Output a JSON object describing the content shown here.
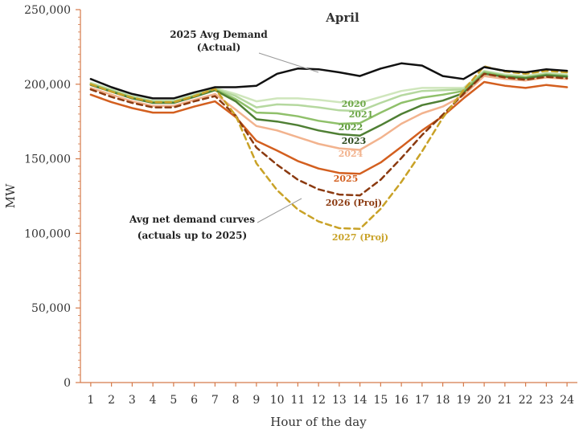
{
  "chart_data": {
    "type": "line",
    "title": "April",
    "xlabel": "Hour of the day",
    "ylabel": "MW",
    "ylim": [
      0,
      250000
    ],
    "xlim": [
      0.5,
      24.5
    ],
    "yticks": [
      0,
      50000,
      100000,
      150000,
      200000,
      250000
    ],
    "ytick_labels": [
      "0",
      "50,000",
      "100,000",
      "150,000",
      "200,000",
      "250,000"
    ],
    "x": [
      1,
      2,
      3,
      4,
      5,
      6,
      7,
      8,
      9,
      10,
      11,
      12,
      13,
      14,
      15,
      16,
      17,
      18,
      19,
      20,
      21,
      22,
      23,
      24
    ],
    "xtick_labels": [
      "1",
      "2",
      "3",
      "4",
      "5",
      "6",
      "7",
      "8",
      "9",
      "10",
      "11",
      "12",
      "13",
      "14",
      "15",
      "16",
      "17",
      "18",
      "19",
      "20",
      "21",
      "22",
      "23",
      "24"
    ],
    "grid": false,
    "series": [
      {
        "name": "2025 Avg Demand (Actual)",
        "label": "",
        "color": "#111111",
        "dash": false,
        "width": 2.5,
        "values": [
          203500,
          198000,
          193500,
          190500,
          190500,
          194500,
          198000,
          198000,
          199000,
          207000,
          210500,
          210000,
          208000,
          205500,
          210500,
          214000,
          212500,
          205500,
          203500,
          211500,
          209000,
          208000,
          210000,
          209000
        ]
      },
      {
        "name": "2020",
        "label": "2020",
        "color": "#cfe6bc",
        "dash": false,
        "width": 2.5,
        "values": [
          201000,
          196500,
          192000,
          189000,
          189000,
          193000,
          197500,
          193500,
          188500,
          190500,
          190500,
          189500,
          188000,
          187500,
          191500,
          195500,
          197500,
          197500,
          197500,
          209000,
          206500,
          205500,
          207500,
          206500
        ]
      },
      {
        "name": "2021",
        "label": "2021",
        "color": "#b5d89f",
        "dash": false,
        "width": 2.5,
        "values": [
          200500,
          196000,
          191500,
          188500,
          188500,
          192500,
          197000,
          192000,
          184500,
          186500,
          186000,
          184500,
          182500,
          182000,
          187500,
          192500,
          195500,
          196000,
          196500,
          208500,
          206000,
          205000,
          207000,
          206000
        ]
      },
      {
        "name": "2022",
        "label": "2022",
        "color": "#8fc06a",
        "dash": false,
        "width": 2.5,
        "values": [
          200000,
          195500,
          191000,
          188000,
          188000,
          192000,
          196500,
          190000,
          181000,
          180500,
          178500,
          175500,
          173500,
          174000,
          181000,
          187500,
          191000,
          193000,
          195500,
          208000,
          205500,
          204500,
          206500,
          205500
        ]
      },
      {
        "name": "2023",
        "label": "2023",
        "color": "#4f7f34",
        "dash": false,
        "width": 2.5,
        "values": [
          199500,
          195000,
          190500,
          187500,
          187500,
          191500,
          196000,
          188500,
          176500,
          175000,
          172500,
          169000,
          166500,
          165500,
          172500,
          180000,
          186000,
          189000,
          194000,
          207000,
          205000,
          204000,
          206000,
          205000
        ]
      },
      {
        "name": "2024",
        "label": "2024",
        "color": "#f2b38e",
        "dash": false,
        "width": 2.5,
        "values": [
          197500,
          193000,
          188500,
          185500,
          185500,
          189500,
          193500,
          183000,
          172000,
          169000,
          164500,
          160000,
          157000,
          156000,
          164000,
          173500,
          180500,
          185000,
          192500,
          205500,
          203500,
          202500,
          204500,
          203500
        ]
      },
      {
        "name": "2025",
        "label": "2025",
        "color": "#d35f1f",
        "dash": false,
        "width": 2.5,
        "values": [
          193000,
          188000,
          184000,
          181000,
          181000,
          185000,
          188500,
          178000,
          162000,
          155500,
          148500,
          143500,
          140500,
          140000,
          147500,
          158000,
          169000,
          178500,
          190500,
          201500,
          199000,
          197500,
          199500,
          198000
        ]
      },
      {
        "name": "2026 (Proj)",
        "label": "2026 (Proj)",
        "color": "#8b3a10",
        "dash": true,
        "width": 2.5,
        "values": [
          196500,
          191500,
          187500,
          184500,
          184500,
          188500,
          192000,
          179000,
          157500,
          146000,
          136000,
          129500,
          126000,
          125500,
          136000,
          150500,
          166000,
          179500,
          193500,
          207000,
          204500,
          203000,
          205000,
          204000
        ]
      },
      {
        "name": "2027 (Proj)",
        "label": "2027 (Proj)",
        "color": "#c9a227",
        "dash": true,
        "width": 2.5,
        "values": [
          200000,
          195000,
          191000,
          188000,
          188000,
          192000,
          197000,
          179000,
          147000,
          129000,
          116000,
          108000,
          103500,
          103000,
          116500,
          134500,
          155000,
          177500,
          196000,
          212000,
          208500,
          207000,
          209000,
          208000
        ]
      }
    ],
    "annotations": [
      {
        "id": "demand",
        "lines": [
          "2025 Avg Demand",
          "(Actual)"
        ]
      },
      {
        "id": "net",
        "lines": [
          "Avg net demand curves",
          "(actuals up to 2025)"
        ]
      }
    ]
  }
}
